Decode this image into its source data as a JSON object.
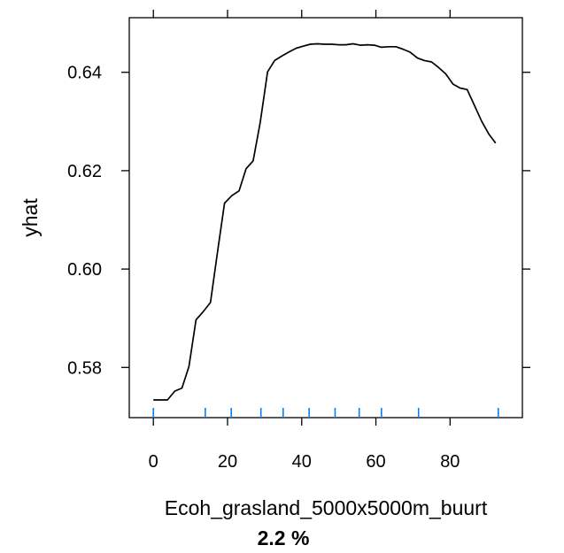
{
  "chart_data": {
    "type": "line",
    "xlabel": "Ecoh_grasland_5000x5000m_buurt",
    "ylabel": "yhat",
    "subtitle": "2.2 %",
    "xlim": [
      -6.5,
      99.5
    ],
    "ylim": [
      0.5698,
      0.6511
    ],
    "x_ticks": [
      0,
      20,
      40,
      60,
      80
    ],
    "x_tick_labels": [
      "0",
      "20",
      "40",
      "60",
      "80"
    ],
    "y_ticks": [
      0.58,
      0.6,
      0.62,
      0.64
    ],
    "y_tick_labels": [
      "0.58",
      "0.60",
      "0.62",
      "0.64"
    ],
    "grid": false,
    "colors": {
      "line": "#000000",
      "rug": "#0080ff",
      "frame": "#000000"
    },
    "series": [
      {
        "x": [
          0,
          1.9,
          3.8,
          5.8,
          7.7,
          9.6,
          11.5,
          13.5,
          15.4,
          17.3,
          19.2,
          21.1,
          23.1,
          25,
          26.9,
          28.8,
          30.8,
          32.7,
          34.6,
          36.5,
          38.5,
          40.4,
          42.3,
          44.2,
          46.2,
          48.1,
          50,
          51.9,
          53.8,
          55.8,
          57.7,
          59.6,
          61.5,
          63.5,
          65.4,
          67.3,
          69.2,
          71.2,
          73.1,
          75,
          76.9,
          78.8,
          80.8,
          82.7,
          84.6,
          86.5,
          88.5,
          90.4,
          92.3
        ],
        "y": [
          0.5734,
          0.5734,
          0.5734,
          0.5752,
          0.5758,
          0.5802,
          0.5897,
          0.5914,
          0.5932,
          0.6035,
          0.6134,
          0.6149,
          0.6159,
          0.6204,
          0.622,
          0.6298,
          0.6401,
          0.6424,
          0.6433,
          0.6441,
          0.6449,
          0.6453,
          0.6457,
          0.6458,
          0.6457,
          0.6457,
          0.6456,
          0.6456,
          0.6458,
          0.6455,
          0.6456,
          0.6455,
          0.6451,
          0.6452,
          0.6452,
          0.6447,
          0.6441,
          0.6429,
          0.6424,
          0.6421,
          0.641,
          0.6397,
          0.6376,
          0.6368,
          0.6365,
          0.6334,
          0.6301,
          0.6275,
          0.6256
        ]
      }
    ],
    "rug": [
      0,
      14,
      21,
      29,
      35,
      42,
      49,
      55.5,
      61.5,
      71.5,
      93
    ]
  }
}
